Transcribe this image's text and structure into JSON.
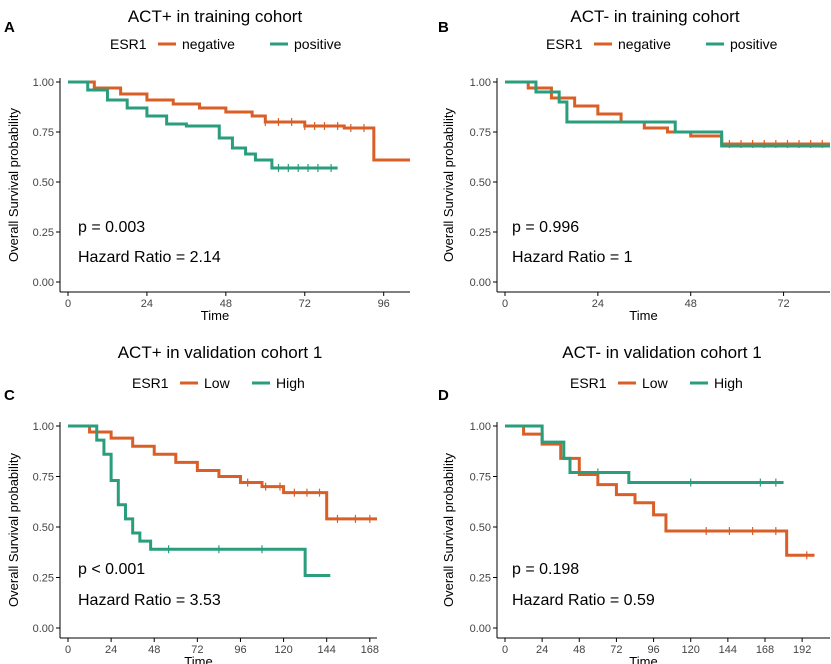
{
  "colors": {
    "negative": "#D95F27",
    "positive": "#2A9D7C"
  },
  "chart_data": [
    {
      "letter": "A",
      "type": "line",
      "title": "ACT+ in training cohort",
      "legend_title": "ESR1",
      "xlabel": "Time",
      "ylabel": "Overall Survival probability",
      "xlim": [
        0,
        104
      ],
      "ylim": [
        0,
        1
      ],
      "xticks": [
        0,
        24,
        48,
        72,
        96
      ],
      "yticks": [
        "0.00",
        "0.25",
        "0.50",
        "0.75",
        "1.00"
      ],
      "annotations": [
        "p = 0.003",
        "Hazard Ratio = 2.14"
      ],
      "series": [
        {
          "name": "negative",
          "color_key": "negative",
          "x": [
            0,
            8,
            16,
            24,
            32,
            40,
            48,
            56,
            60,
            72,
            84,
            92,
            93,
            104
          ],
          "y": [
            1.0,
            0.97,
            0.94,
            0.91,
            0.89,
            0.87,
            0.85,
            0.83,
            0.8,
            0.78,
            0.77,
            0.77,
            0.61,
            0.61
          ],
          "censor_x": [
            60,
            64,
            68,
            72,
            75,
            78,
            82,
            86,
            90
          ]
        },
        {
          "name": "positive",
          "color_key": "positive",
          "x": [
            0,
            6,
            12,
            18,
            24,
            30,
            36,
            44,
            46,
            50,
            54,
            57,
            60,
            62,
            82
          ],
          "y": [
            1.0,
            0.96,
            0.91,
            0.87,
            0.83,
            0.79,
            0.78,
            0.78,
            0.72,
            0.67,
            0.64,
            0.61,
            0.61,
            0.57,
            0.57
          ],
          "censor_x": [
            64,
            67,
            70,
            73,
            76,
            80
          ]
        }
      ]
    },
    {
      "letter": "B",
      "type": "line",
      "title": "ACT- in training cohort",
      "legend_title": "ESR1",
      "xlabel": "Time",
      "ylabel": "Overall Survival probability",
      "xlim": [
        0,
        84
      ],
      "ylim": [
        0,
        1
      ],
      "xticks": [
        0,
        24,
        48,
        72
      ],
      "yticks": [
        "0.00",
        "0.25",
        "0.50",
        "0.75",
        "1.00"
      ],
      "annotations": [
        "p = 0.996",
        "Hazard Ratio = 1"
      ],
      "series": [
        {
          "name": "negative",
          "color_key": "negative",
          "x": [
            0,
            6,
            12,
            18,
            24,
            30,
            36,
            42,
            48,
            56,
            84
          ],
          "y": [
            1.0,
            0.97,
            0.92,
            0.88,
            0.84,
            0.8,
            0.77,
            0.75,
            0.73,
            0.69,
            0.69
          ],
          "censor_x": [
            58,
            61,
            64,
            67,
            70,
            73,
            76,
            79,
            82
          ]
        },
        {
          "name": "positive",
          "color_key": "positive",
          "x": [
            0,
            4,
            8,
            14,
            16,
            36,
            44,
            48,
            56,
            84
          ],
          "y": [
            1.0,
            1.0,
            0.95,
            0.9,
            0.8,
            0.8,
            0.75,
            0.75,
            0.68,
            0.68
          ],
          "censor_x": []
        }
      ]
    },
    {
      "letter": "C",
      "type": "line",
      "title": "ACT+ in validation  cohort 1",
      "legend_title": "ESR1",
      "xlabel": "Time",
      "ylabel": "Overall Survival probability",
      "xlim": [
        0,
        172
      ],
      "ylim": [
        0,
        1
      ],
      "xticks": [
        0,
        24,
        48,
        72,
        96,
        120,
        144,
        168
      ],
      "yticks": [
        "0.00",
        "0.25",
        "0.50",
        "0.75",
        "1.00"
      ],
      "annotations": [
        "p < 0.001",
        "Hazard Ratio = 3.53"
      ],
      "series": [
        {
          "name": "Low",
          "color_key": "negative",
          "x": [
            0,
            12,
            24,
            36,
            48,
            60,
            72,
            84,
            96,
            108,
            120,
            130,
            144,
            172
          ],
          "y": [
            1.0,
            0.97,
            0.94,
            0.9,
            0.86,
            0.82,
            0.78,
            0.75,
            0.72,
            0.7,
            0.67,
            0.67,
            0.54,
            0.54
          ],
          "censor_x": [
            100,
            110,
            118,
            126,
            133,
            140,
            150,
            160,
            168
          ]
        },
        {
          "name": "High",
          "color_key": "positive",
          "x": [
            0,
            10,
            16,
            20,
            24,
            28,
            32,
            36,
            40,
            46,
            60,
            132,
            146
          ],
          "y": [
            1.0,
            1.0,
            0.93,
            0.86,
            0.73,
            0.61,
            0.54,
            0.47,
            0.43,
            0.39,
            0.39,
            0.26,
            0.26
          ],
          "censor_x": [
            56,
            84,
            108
          ]
        }
      ]
    },
    {
      "letter": "D",
      "type": "line",
      "title": "ACT- in validation  cohort 1",
      "legend_title": "ESR1",
      "xlabel": "Time",
      "ylabel": "Overall Survival probability",
      "xlim": [
        0,
        210
      ],
      "ylim": [
        0,
        1
      ],
      "xticks": [
        0,
        24,
        48,
        72,
        96,
        120,
        144,
        168,
        192
      ],
      "yticks": [
        "0.00",
        "0.25",
        "0.50",
        "0.75",
        "1.00"
      ],
      "annotations": [
        "p = 0.198",
        "Hazard Ratio = 0.59"
      ],
      "series": [
        {
          "name": "Low",
          "color_key": "negative",
          "x": [
            0,
            12,
            24,
            36,
            48,
            60,
            72,
            84,
            96,
            104,
            120,
            180,
            182,
            200
          ],
          "y": [
            1.0,
            0.96,
            0.91,
            0.84,
            0.76,
            0.71,
            0.66,
            0.62,
            0.56,
            0.48,
            0.48,
            0.48,
            0.36,
            0.36
          ],
          "censor_x": [
            130,
            145,
            160,
            175,
            195
          ]
        },
        {
          "name": "High",
          "color_key": "positive",
          "x": [
            0,
            24,
            36,
            38,
            42,
            80,
            180
          ],
          "y": [
            1.0,
            0.92,
            0.92,
            0.84,
            0.77,
            0.72,
            0.72
          ],
          "censor_x": [
            60,
            120,
            165,
            175
          ]
        }
      ]
    }
  ]
}
